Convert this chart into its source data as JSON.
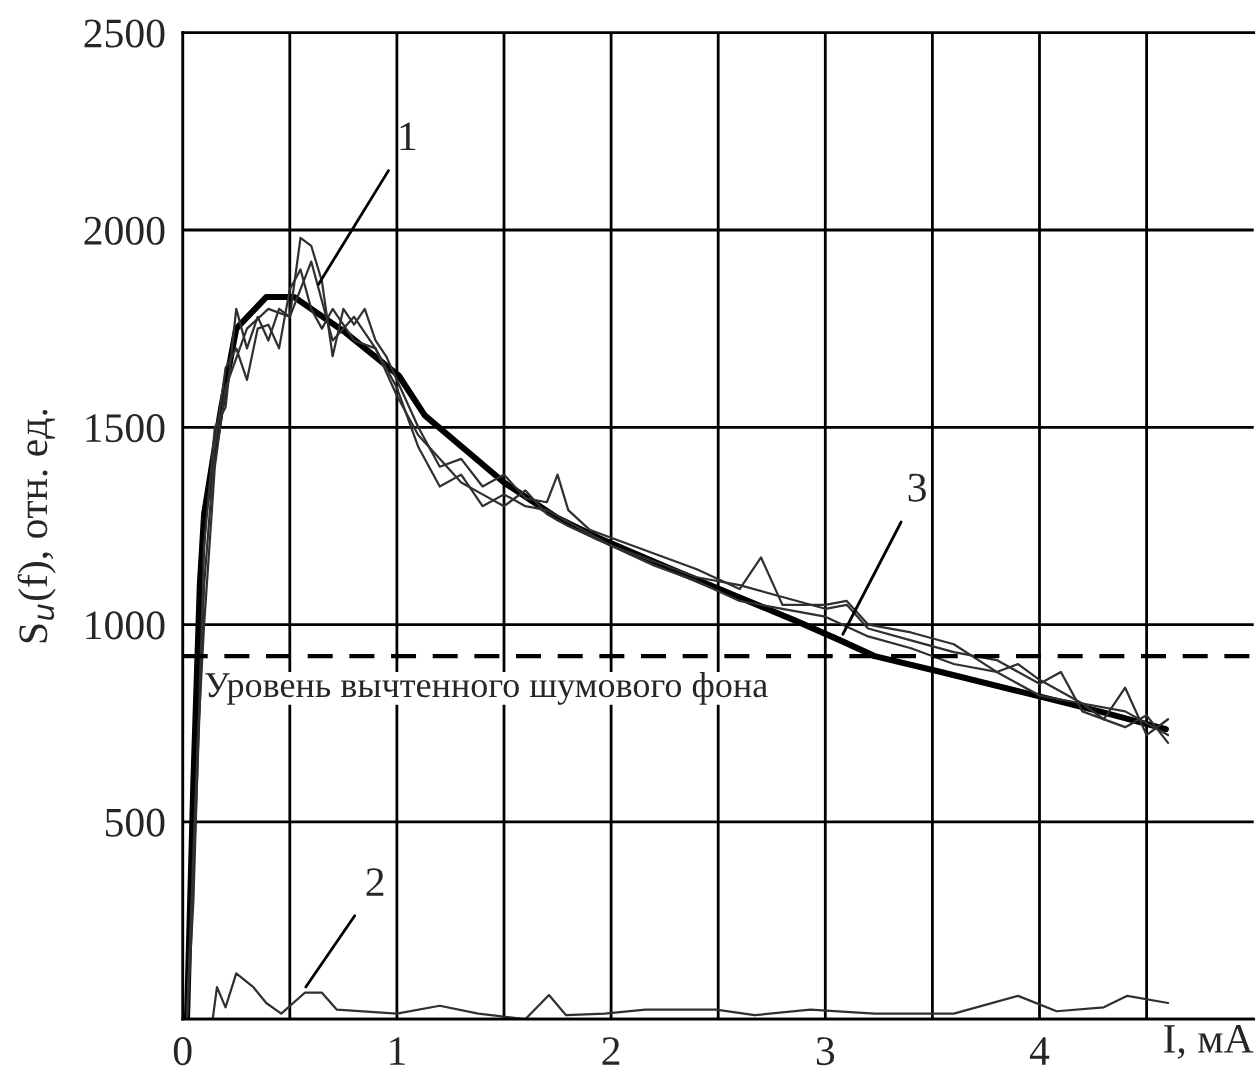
{
  "chart_data": {
    "type": "line",
    "xlabel": "I, мА",
    "ylabel": "S$_{u}$(f), отн. ед.",
    "xlim": [
      0,
      5
    ],
    "ylim": [
      0,
      2500
    ],
    "xticks": [
      0,
      {
        "value": 0.5,
        "label": null
      },
      1,
      {
        "value": 1.5,
        "label": null
      },
      2,
      {
        "value": 2.5,
        "label": null
      },
      3,
      {
        "value": 3.5,
        "label": null
      },
      4,
      {
        "value": 4.5,
        "label": null
      }
    ],
    "yticks": [
      {
        "value": 0,
        "label": null
      },
      500,
      1000,
      1500,
      2000,
      2500
    ],
    "grid": true,
    "marker": "none",
    "line_style": "solid",
    "series": [
      {
        "color": "#000000",
        "x": [
          0.02,
          0.05,
          0.08,
          0.1,
          0.18,
          0.25,
          0.39,
          0.52,
          0.76,
          1.01,
          1.13,
          1.5,
          1.75,
          1.94,
          2.24,
          2.55,
          2.86,
          3.07,
          3.23,
          3.54,
          3.91,
          4.28,
          4.59
        ],
        "values": [
          0,
          600,
          1100,
          1280,
          1550,
          1750,
          1830,
          1830,
          1740,
          1630,
          1530,
          1360,
          1270,
          1220,
          1150,
          1080,
          1010,
          960,
          920,
          880,
          830,
          780,
          735
        ]
      },
      {
        "color": "#303030",
        "x": [
          0.02,
          0.05,
          0.1,
          0.15,
          0.2,
          0.25,
          0.3,
          0.35,
          0.4,
          0.45,
          0.5,
          0.55,
          0.6,
          0.65,
          0.7,
          0.75,
          0.8,
          0.85,
          0.9,
          0.95,
          1.0,
          1.1,
          1.2,
          1.3,
          1.4,
          1.5,
          1.6,
          1.7,
          1.75,
          1.8,
          1.9,
          2.0,
          2.2,
          2.4,
          2.6,
          2.7,
          2.8,
          3.0,
          3.1,
          3.2,
          3.4,
          3.6,
          3.8,
          3.9,
          4.0,
          4.2,
          4.3,
          4.4,
          4.5,
          4.6
        ],
        "values": [
          0,
          300,
          1200,
          1500,
          1550,
          1800,
          1700,
          1780,
          1720,
          1800,
          1780,
          1980,
          1960,
          1870,
          1680,
          1800,
          1760,
          1800,
          1720,
          1680,
          1620,
          1500,
          1400,
          1420,
          1350,
          1380,
          1320,
          1310,
          1380,
          1290,
          1240,
          1220,
          1180,
          1140,
          1090,
          1170,
          1050,
          1050,
          1060,
          1000,
          980,
          950,
          880,
          900,
          860,
          800,
          760,
          840,
          720,
          760
        ]
      },
      {
        "color": "#303030",
        "x": [
          0.02,
          0.06,
          0.1,
          0.15,
          0.2,
          0.25,
          0.3,
          0.35,
          0.4,
          0.45,
          0.5,
          0.55,
          0.6,
          0.65,
          0.7,
          0.8,
          0.9,
          1.0,
          1.1,
          1.2,
          1.3,
          1.4,
          1.5,
          1.6,
          1.7,
          1.8,
          1.9,
          2.0,
          2.2,
          2.4,
          2.6,
          2.8,
          3.0,
          3.1,
          3.2,
          3.4,
          3.6,
          3.8,
          4.0,
          4.1,
          4.2,
          4.4,
          4.5,
          4.6
        ],
        "values": [
          0,
          500,
          1100,
          1450,
          1650,
          1700,
          1620,
          1750,
          1760,
          1700,
          1850,
          1900,
          1800,
          1750,
          1800,
          1720,
          1700,
          1600,
          1450,
          1350,
          1380,
          1300,
          1330,
          1300,
          1290,
          1260,
          1230,
          1200,
          1160,
          1120,
          1100,
          1070,
          1040,
          1050,
          990,
          960,
          930,
          910,
          850,
          880,
          780,
          740,
          770,
          700
        ]
      },
      {
        "color": "#303030",
        "x": [
          0.02,
          0.07,
          0.1,
          0.15,
          0.2,
          0.3,
          0.4,
          0.5,
          0.6,
          0.7,
          0.8,
          0.9,
          1.0,
          1.1,
          1.2,
          1.3,
          1.4,
          1.5,
          1.6,
          1.7,
          1.8,
          2.0,
          2.2,
          2.4,
          2.6,
          2.8,
          3.0,
          3.2,
          3.4,
          3.6,
          3.8,
          4.0,
          4.2,
          4.4,
          4.6
        ],
        "values": [
          0,
          700,
          1000,
          1400,
          1600,
          1750,
          1800,
          1780,
          1920,
          1720,
          1780,
          1700,
          1580,
          1480,
          1420,
          1360,
          1330,
          1300,
          1340,
          1280,
          1250,
          1200,
          1150,
          1110,
          1060,
          1040,
          1020,
          970,
          940,
          900,
          880,
          820,
          800,
          780,
          720
        ]
      },
      {
        "color": "#303030",
        "x": [
          0.14,
          0.16,
          0.2,
          0.25,
          0.33,
          0.39,
          0.46,
          0.57,
          0.65,
          0.72,
          1.0,
          1.2,
          1.38,
          1.6,
          1.71,
          1.79,
          1.97,
          2.16,
          2.49,
          2.67,
          2.93,
          3.23,
          3.6,
          3.9,
          4.08,
          4.3,
          4.41,
          4.6
        ],
        "values": [
          0,
          81,
          30,
          116,
          81,
          41,
          14,
          67,
          67,
          24,
          14,
          34,
          14,
          0,
          61,
          10,
          14,
          24,
          24,
          10,
          24,
          14,
          14,
          59,
          20,
          30,
          59,
          41
        ]
      }
    ],
    "ref_lines": [
      {
        "axis": "y",
        "value": 920,
        "label": "Уровень вычтенного шумового фона",
        "color": "#000000",
        "line_style": "dashed"
      }
    ],
    "annotations": [
      {
        "text": "1",
        "x": 0.62,
        "y": 1850
      },
      {
        "text": "2",
        "x": 0.56,
        "y": 70
      },
      {
        "text": "3",
        "x": 3.07,
        "y": 963
      }
    ]
  }
}
